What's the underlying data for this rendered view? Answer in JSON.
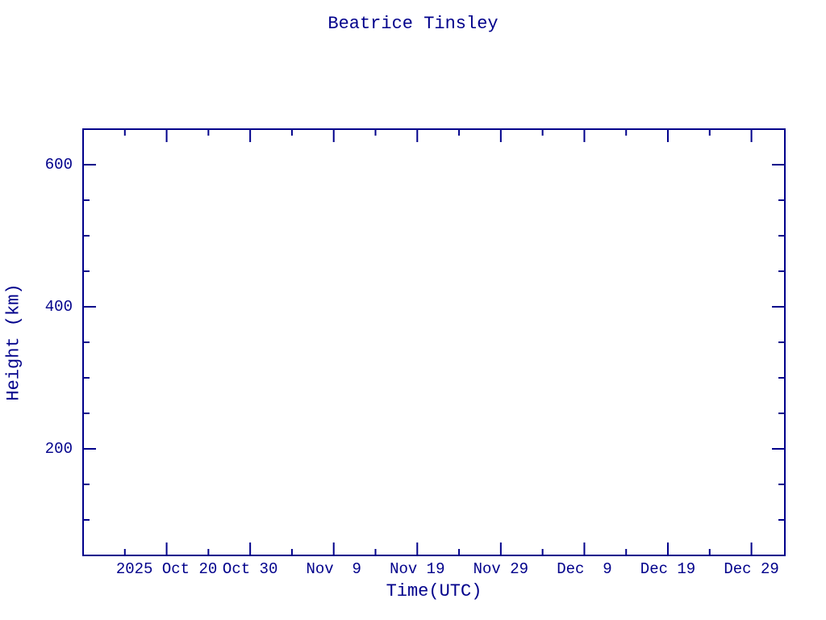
{
  "chart_data": {
    "type": "scatter",
    "title": "Beatrice Tinsley",
    "xlabel": "Time(UTC)",
    "ylabel": "Height (km)",
    "series": [],
    "x_axis": {
      "unit": "days from axis start",
      "range_days": [
        0,
        84
      ],
      "major_ticks": [
        {
          "day": 10,
          "label": "2025 Oct 20"
        },
        {
          "day": 20,
          "label": "Oct 30"
        },
        {
          "day": 30,
          "label": "Nov  9"
        },
        {
          "day": 40,
          "label": "Nov 19"
        },
        {
          "day": 50,
          "label": "Nov 29"
        },
        {
          "day": 60,
          "label": "Dec  9"
        },
        {
          "day": 70,
          "label": "Dec 19"
        },
        {
          "day": 80,
          "label": "Dec 29"
        }
      ],
      "minor_ticks_days": [
        5,
        15,
        25,
        35,
        45,
        55,
        65,
        75
      ]
    },
    "y_axis": {
      "range": [
        50,
        650
      ],
      "major_ticks": [
        {
          "value": 200,
          "label": "200"
        },
        {
          "value": 400,
          "label": "400"
        },
        {
          "value": 600,
          "label": "600"
        }
      ],
      "minor_ticks": [
        100,
        150,
        250,
        300,
        350,
        450,
        500,
        550
      ]
    },
    "grid": false,
    "legend": "none",
    "colors": {
      "foreground": "#00008B",
      "background": "#FFFFFF"
    }
  }
}
